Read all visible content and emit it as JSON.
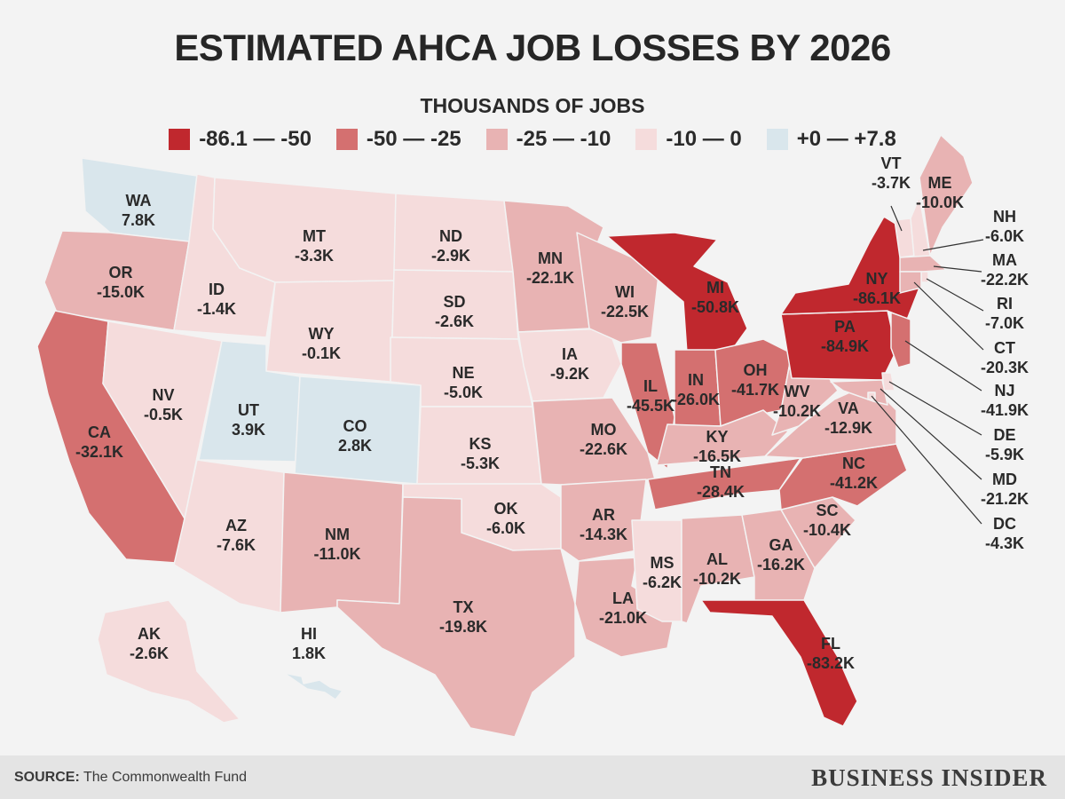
{
  "title": "ESTIMATED AHCA JOB LOSSES BY 2026",
  "subtitle": "THOUSANDS OF JOBS",
  "legend": [
    {
      "label": "-86.1 — -50",
      "color": "#c0282e"
    },
    {
      "label": "-50 — -25",
      "color": "#d47070"
    },
    {
      "label": "-25 — -10",
      "color": "#e8b3b3"
    },
    {
      "label": "-10 — 0",
      "color": "#f5dcdc"
    },
    {
      "label": "+0 — +7.8",
      "color": "#d9e6ec"
    }
  ],
  "footer": {
    "source_label": "SOURCE:",
    "source_text": " The Commonwealth Fund",
    "brand": "BUSINESS INSIDER"
  },
  "states": [
    {
      "code": "WA",
      "value": "7.8K",
      "bin": 4
    },
    {
      "code": "OR",
      "value": "-15.0K",
      "bin": 2
    },
    {
      "code": "CA",
      "value": "-32.1K",
      "bin": 1
    },
    {
      "code": "ID",
      "value": "-1.4K",
      "bin": 3
    },
    {
      "code": "NV",
      "value": "-0.5K",
      "bin": 3
    },
    {
      "code": "MT",
      "value": "-3.3K",
      "bin": 3
    },
    {
      "code": "WY",
      "value": "-0.1K",
      "bin": 3
    },
    {
      "code": "UT",
      "value": "3.9K",
      "bin": 4
    },
    {
      "code": "CO",
      "value": "2.8K",
      "bin": 4
    },
    {
      "code": "AZ",
      "value": "-7.6K",
      "bin": 3
    },
    {
      "code": "NM",
      "value": "-11.0K",
      "bin": 2
    },
    {
      "code": "ND",
      "value": "-2.9K",
      "bin": 3
    },
    {
      "code": "SD",
      "value": "-2.6K",
      "bin": 3
    },
    {
      "code": "NE",
      "value": "-5.0K",
      "bin": 3
    },
    {
      "code": "KS",
      "value": "-5.3K",
      "bin": 3
    },
    {
      "code": "OK",
      "value": "-6.0K",
      "bin": 3
    },
    {
      "code": "TX",
      "value": "-19.8K",
      "bin": 2
    },
    {
      "code": "MN",
      "value": "-22.1K",
      "bin": 2
    },
    {
      "code": "IA",
      "value": "-9.2K",
      "bin": 3
    },
    {
      "code": "MO",
      "value": "-22.6K",
      "bin": 2
    },
    {
      "code": "AR",
      "value": "-14.3K",
      "bin": 2
    },
    {
      "code": "LA",
      "value": "-21.0K",
      "bin": 2
    },
    {
      "code": "WI",
      "value": "-22.5K",
      "bin": 2
    },
    {
      "code": "IL",
      "value": "-45.5K",
      "bin": 1
    },
    {
      "code": "MI",
      "value": "-50.8K",
      "bin": 0
    },
    {
      "code": "IN",
      "value": "-26.0K",
      "bin": 1
    },
    {
      "code": "OH",
      "value": "-41.7K",
      "bin": 1
    },
    {
      "code": "KY",
      "value": "-16.5K",
      "bin": 2
    },
    {
      "code": "TN",
      "value": "-28.4K",
      "bin": 1
    },
    {
      "code": "MS",
      "value": "-6.2K",
      "bin": 3
    },
    {
      "code": "AL",
      "value": "-10.2K",
      "bin": 2
    },
    {
      "code": "GA",
      "value": "-16.2K",
      "bin": 2
    },
    {
      "code": "FL",
      "value": "-83.2K",
      "bin": 0
    },
    {
      "code": "SC",
      "value": "-10.4K",
      "bin": 2
    },
    {
      "code": "NC",
      "value": "-41.2K",
      "bin": 1
    },
    {
      "code": "VA",
      "value": "-12.9K",
      "bin": 2
    },
    {
      "code": "WV",
      "value": "-10.2K",
      "bin": 2
    },
    {
      "code": "PA",
      "value": "-84.9K",
      "bin": 0
    },
    {
      "code": "NY",
      "value": "-86.1K",
      "bin": 0
    },
    {
      "code": "VT",
      "value": "-3.7K",
      "bin": 3
    },
    {
      "code": "NH",
      "value": "-6.0K",
      "bin": 3
    },
    {
      "code": "ME",
      "value": "-10.0K",
      "bin": 2
    },
    {
      "code": "MA",
      "value": "-22.2K",
      "bin": 2
    },
    {
      "code": "RI",
      "value": "-7.0K",
      "bin": 3
    },
    {
      "code": "CT",
      "value": "-20.3K",
      "bin": 2
    },
    {
      "code": "NJ",
      "value": "-41.9K",
      "bin": 1
    },
    {
      "code": "DE",
      "value": "-5.9K",
      "bin": 3
    },
    {
      "code": "MD",
      "value": "-21.2K",
      "bin": 2
    },
    {
      "code": "DC",
      "value": "-4.3K",
      "bin": 3
    },
    {
      "code": "AK",
      "value": "-2.6K",
      "bin": 3
    },
    {
      "code": "HI",
      "value": "1.8K",
      "bin": 4
    }
  ]
}
